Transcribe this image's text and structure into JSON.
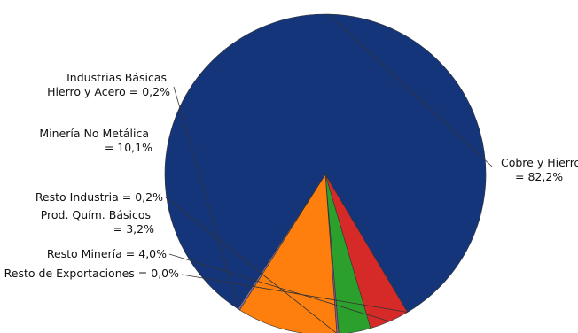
{
  "chart_data": {
    "type": "pie",
    "title": "",
    "slices": [
      {
        "label_lines": [
          "Cobre y Hierro",
          "= 82,2%"
        ],
        "value": 82.2,
        "color": "#15357a"
      },
      {
        "label_lines": [
          "Resto de Exportaciones = 0,0%"
        ],
        "value": 0.0,
        "color": "#2a2a2a"
      },
      {
        "label_lines": [
          "Resto Minería = 4,0%"
        ],
        "value": 4.0,
        "color": "#d62a28"
      },
      {
        "label_lines": [
          "Prod. Quím. Básicos",
          "= 3,2%"
        ],
        "value": 3.2,
        "color": "#2ca02c"
      },
      {
        "label_lines": [
          "Resto Industria = 0,2%"
        ],
        "value": 0.2,
        "color": "#8c5a8c"
      },
      {
        "label_lines": [
          "Minería No Metálica",
          "= 10,1%"
        ],
        "value": 10.1,
        "color": "#ff7f0e"
      },
      {
        "label_lines": [
          "Industrias Básicas",
          "Hierro y Acero = 0,2%"
        ],
        "value": 0.2,
        "color": "#7f6fa8"
      }
    ],
    "legend": "none"
  }
}
